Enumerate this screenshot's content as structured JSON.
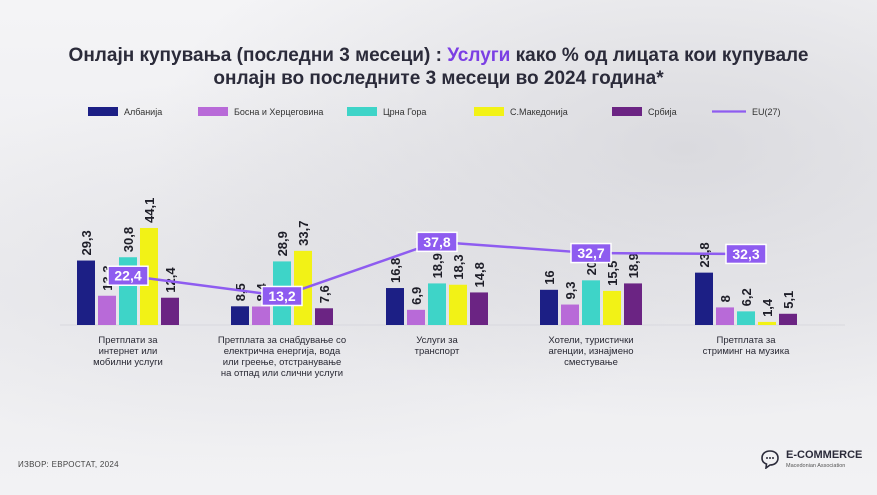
{
  "title": {
    "part1": "Онлајн купувања (последни 3 месеци) : ",
    "highlight": "Услуги",
    "part2": " како % од лицата кои купувале",
    "line2": "онлајн во последните 3 месеци во 2024 година*"
  },
  "source": "ИЗВОР: ЕВРОСТАТ, 2024",
  "logo": {
    "name": "E-COMMERCE",
    "sub": "Macedonian Association"
  },
  "colors": {
    "title_highlight": "#7b3fe4",
    "eu_label_bg": "#8e5cf0"
  },
  "chart_data": {
    "type": "bar",
    "categories": [
      [
        "Претплати за",
        "интернет или",
        "мобилни услуги"
      ],
      [
        "Претплата за снабдување со",
        "електрична енергија, вода",
        "или греење, отстранување",
        "на отпад или слични услуги"
      ],
      [
        "Услуги за",
        "транспорт"
      ],
      [
        "Хотели, туристички",
        "агенции, изнајмено",
        "сместување"
      ],
      [
        "Претплата за",
        "стриминг на музика"
      ]
    ],
    "series": [
      {
        "name": "Албанија",
        "color": "#1c1f85",
        "values": [
          29.3,
          8.5,
          16.8,
          16,
          23.8
        ]
      },
      {
        "name": "Босна и Херцеговина",
        "color": "#b86ad8",
        "values": [
          13.3,
          8.4,
          6.9,
          9.3,
          8
        ]
      },
      {
        "name": "Црна Гора",
        "color": "#3ed4c8",
        "values": [
          30.8,
          28.9,
          18.9,
          20.3,
          6.2
        ]
      },
      {
        "name": "С.Македонија",
        "color": "#f2f216",
        "values": [
          44.1,
          33.7,
          18.3,
          15.5,
          1.4
        ]
      },
      {
        "name": "Србија",
        "color": "#6b2483",
        "values": [
          12.4,
          7.6,
          14.8,
          18.9,
          5.1
        ]
      }
    ],
    "line": {
      "name": "EU(27)",
      "color": "#8e5cf0",
      "values": [
        22.4,
        13.2,
        37.8,
        32.7,
        32.3
      ]
    },
    "value_labels": [
      [
        "29,3",
        "13,3",
        "30,8",
        "44,1",
        "12,4"
      ],
      [
        "8,5",
        "8,4",
        "28,9",
        "33,7",
        "7,6"
      ],
      [
        "16,8",
        "6,9",
        "18,9",
        "18,3",
        "14,8"
      ],
      [
        "16",
        "9,3",
        "20,3",
        "15,5",
        "18,9"
      ],
      [
        "23,8",
        "8",
        "6,2",
        "1,4",
        "5,1"
      ]
    ],
    "line_labels": [
      "22,4",
      "13,2",
      "37,8",
      "32,7",
      "32,3"
    ],
    "legend_position": "top",
    "ylim": [
      0,
      50
    ],
    "grid": false
  }
}
